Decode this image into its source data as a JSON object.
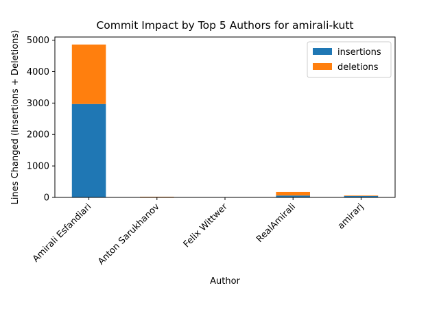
{
  "chart_data": {
    "type": "bar",
    "stacked": true,
    "title": "Commit Impact by Top 5 Authors for amirali-kutt",
    "xlabel": "Author",
    "ylabel": "Lines Changed (Insertions + Deletions)",
    "categories": [
      "Amirali Esfandiari",
      "Anton Sarukhanov",
      "Felix Wittwer",
      "RealAmirali",
      "amirarj"
    ],
    "series": [
      {
        "name": "insertions",
        "values": [
          2970,
          8,
          2,
          60,
          45
        ],
        "color": "#1f77b4"
      },
      {
        "name": "deletions",
        "values": [
          1890,
          12,
          3,
          115,
          15
        ],
        "color": "#ff7f0e"
      }
    ],
    "ylim": [
      0,
      5100
    ],
    "yticks": [
      0,
      1000,
      2000,
      3000,
      4000,
      5000
    ],
    "grid": false,
    "legend_position": "top-right"
  }
}
